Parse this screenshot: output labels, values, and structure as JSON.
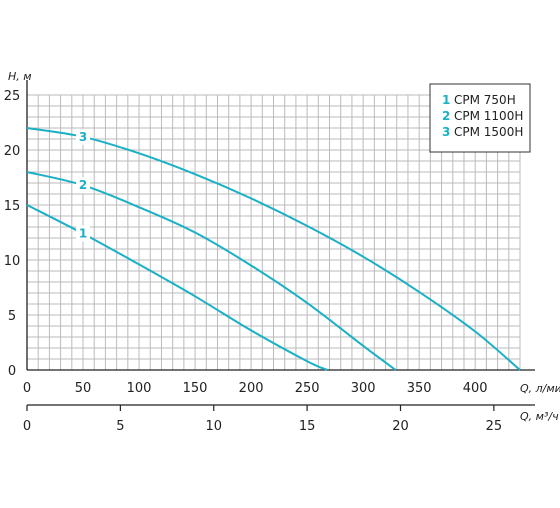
{
  "chart_data": {
    "type": "line",
    "ylabel": "H, м",
    "xlabel": "Q, л/мин",
    "xlabel_secondary": "Q, м³/ч",
    "xlim": [
      0,
      440
    ],
    "ylim": [
      0,
      25
    ],
    "xlim_secondary": [
      0,
      26.4
    ],
    "xticks": [
      0,
      50,
      100,
      150,
      200,
      250,
      300,
      350,
      400
    ],
    "yticks": [
      0,
      5,
      10,
      15,
      20,
      25
    ],
    "xticks_secondary": [
      0,
      5,
      10,
      15,
      20,
      25
    ],
    "grid": true,
    "legend_position": "top-right",
    "color": "#1ab0c6",
    "series": [
      {
        "name": "CPM 750H",
        "number": "1",
        "x": [
          0,
          50,
          100,
          150,
          200,
          250,
          268
        ],
        "y": [
          15,
          12.4,
          9.6,
          6.7,
          3.6,
          0.8,
          0
        ]
      },
      {
        "name": "CPM 1100H",
        "number": "2",
        "x": [
          0,
          50,
          100,
          150,
          200,
          250,
          300,
          329
        ],
        "y": [
          18,
          16.8,
          14.8,
          12.5,
          9.5,
          6.1,
          2.2,
          0
        ]
      },
      {
        "name": "CPM 1500H",
        "number": "3",
        "x": [
          0,
          50,
          100,
          150,
          200,
          250,
          300,
          350,
          400,
          440
        ],
        "y": [
          22,
          21.2,
          19.7,
          17.8,
          15.6,
          13.1,
          10.3,
          7.1,
          3.5,
          0
        ]
      }
    ],
    "legend": [
      {
        "number": "1",
        "label": "CPM 750H"
      },
      {
        "number": "2",
        "label": "CPM 1100H"
      },
      {
        "number": "3",
        "label": "CPM 1500H"
      }
    ]
  }
}
